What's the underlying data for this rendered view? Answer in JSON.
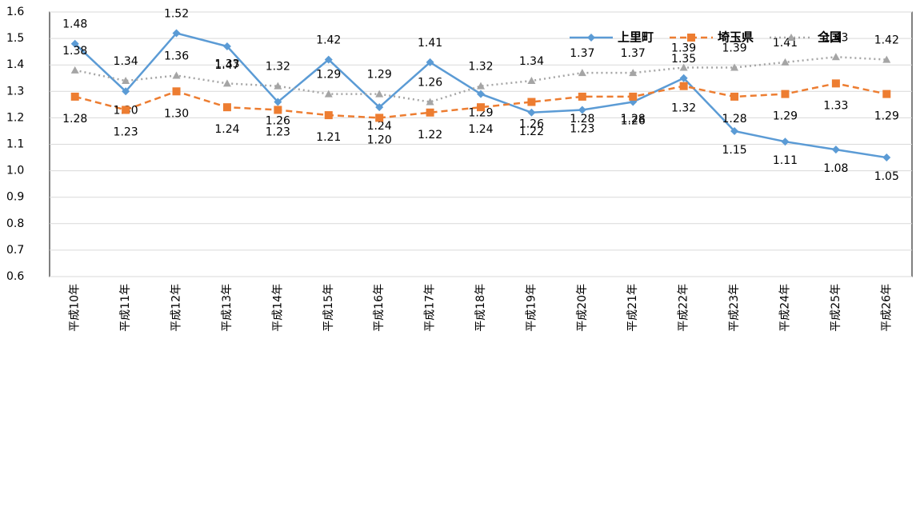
{
  "chart_data": {
    "type": "line",
    "categories": [
      "平成10年",
      "平成11年",
      "平成12年",
      "平成13年",
      "平成14年",
      "平成15年",
      "平成16年",
      "平成17年",
      "平成18年",
      "平成19年",
      "平成20年",
      "平成21年",
      "平成22年",
      "平成23年",
      "平成24年",
      "平成25年",
      "平成26年"
    ],
    "series": [
      {
        "name": "上里町",
        "color": "#5b9bd5",
        "line_style": "solid",
        "marker": "diamond",
        "values": [
          1.48,
          1.3,
          1.52,
          1.47,
          1.26,
          1.42,
          1.24,
          1.41,
          1.29,
          1.22,
          1.23,
          1.26,
          1.35,
          1.15,
          1.11,
          1.08,
          1.05
        ],
        "value_labels": [
          "1.48",
          "1.30",
          "1.52",
          "1.47",
          "1.26",
          "1.42",
          "1.24",
          "1.41",
          "1.29",
          "1.22",
          "1.23",
          "1.26",
          "1.35",
          "1.15",
          "1.11",
          "1.08",
          "1.05"
        ]
      },
      {
        "name": "埼玉県",
        "color": "#ed7d31",
        "line_style": "dashed",
        "marker": "square",
        "values": [
          1.28,
          1.23,
          1.3,
          1.24,
          1.23,
          1.21,
          1.2,
          1.22,
          1.24,
          1.26,
          1.28,
          1.28,
          1.32,
          1.28,
          1.29,
          1.33,
          1.29
        ],
        "value_labels": [
          "1.28",
          "1.23",
          "1.30",
          "1.24",
          "1.23",
          "1.21",
          "1.20",
          "1.22",
          "1.24",
          "1.26",
          "1.28",
          "1.28",
          "1.32",
          "1.28",
          "1.29",
          "1.33",
          "1.29"
        ]
      },
      {
        "name": "全国",
        "color": "#a5a5a5",
        "line_style": "dotted",
        "marker": "triangle",
        "values": [
          1.38,
          1.34,
          1.36,
          1.33,
          1.32,
          1.29,
          1.29,
          1.26,
          1.32,
          1.34,
          1.37,
          1.37,
          1.39,
          1.39,
          1.41,
          1.43,
          1.42
        ],
        "value_labels": [
          "1.38",
          "1.34",
          "1.36",
          "1.33",
          "1.32",
          "1.29",
          "1.29",
          "1.26",
          "1.32",
          "1.34",
          "1.37",
          "1.37",
          "1.39",
          "1.39",
          "1.41",
          "1.43",
          "1.42"
        ]
      }
    ],
    "ylim": [
      0.6,
      1.6
    ],
    "yticks": [
      0.6,
      0.7,
      0.8,
      0.9,
      {
        "value": 1,
        "label": "1.0"
      },
      1.1,
      1.2,
      1.3,
      1.4,
      1.5,
      1.6
    ],
    "grid": true,
    "legend": "upper right"
  }
}
